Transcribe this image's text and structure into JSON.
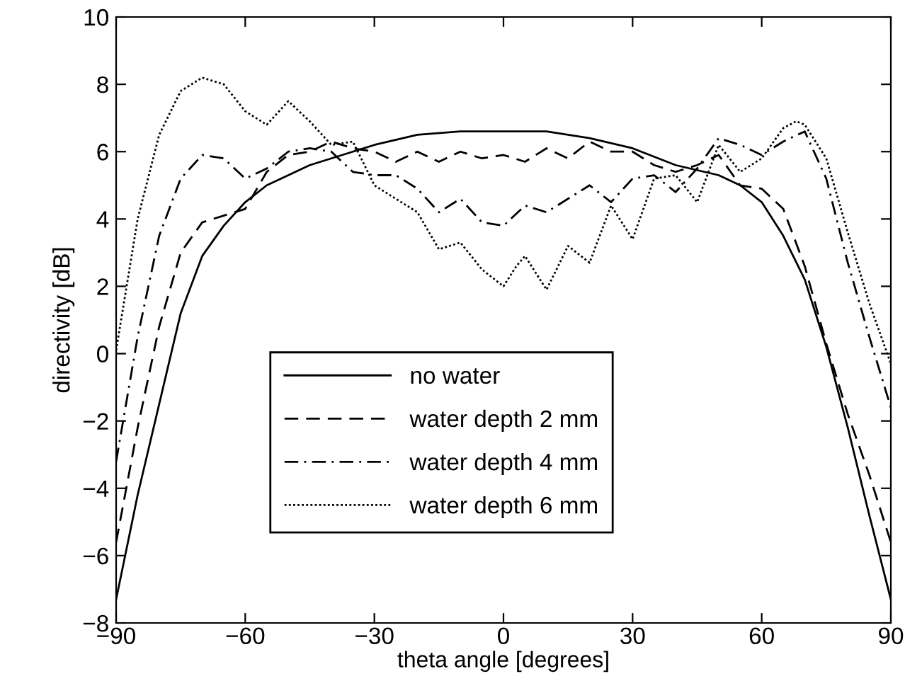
{
  "chart_data": {
    "type": "line",
    "xlabel": "theta angle [degrees]",
    "ylabel": "directivity [dB]",
    "xlim": [
      -90,
      90
    ],
    "ylim": [
      -8,
      10
    ],
    "xticks": [
      -90,
      -60,
      -30,
      0,
      30,
      60,
      90
    ],
    "yticks": [
      -8,
      -6,
      -4,
      -2,
      0,
      2,
      4,
      6,
      8,
      10
    ],
    "grid": false,
    "legend": "bottom",
    "marker": "none",
    "series": [
      {
        "name": "no water",
        "color": "#000000",
        "line_style": "solid",
        "x": [
          -90,
          -85,
          -80,
          -75,
          -70,
          -65,
          -60,
          -55,
          -50,
          -45,
          -40,
          -35,
          -30,
          -20,
          -10,
          0,
          10,
          20,
          30,
          40,
          50,
          55,
          60,
          65,
          70,
          75,
          80,
          85,
          90
        ],
        "values": [
          -7.3,
          -4.2,
          -1.5,
          1.2,
          2.9,
          3.8,
          4.5,
          5.0,
          5.3,
          5.6,
          5.8,
          6.0,
          6.2,
          6.5,
          6.6,
          6.6,
          6.6,
          6.4,
          6.1,
          5.6,
          5.3,
          5.0,
          4.5,
          3.5,
          2.2,
          0.2,
          -2.2,
          -4.8,
          -7.3
        ]
      },
      {
        "name": "water depth 2 mm",
        "color": "#000000",
        "line_style": "dashed",
        "x": [
          -90,
          -85,
          -80,
          -75,
          -70,
          -65,
          -60,
          -55,
          -50,
          -45,
          -40,
          -35,
          -30,
          -25,
          -20,
          -15,
          -10,
          -5,
          0,
          5,
          10,
          15,
          20,
          25,
          30,
          35,
          40,
          45,
          50,
          55,
          60,
          65,
          70,
          75,
          80,
          85,
          90
        ],
        "values": [
          -5.6,
          -2.2,
          0.8,
          3.0,
          3.9,
          4.1,
          4.3,
          5.4,
          5.9,
          6.0,
          6.3,
          6.1,
          6.0,
          5.7,
          6.0,
          5.7,
          6.0,
          5.8,
          5.9,
          5.7,
          6.1,
          5.8,
          6.3,
          6.0,
          6.0,
          5.6,
          5.4,
          5.6,
          5.9,
          5.0,
          4.9,
          4.3,
          2.6,
          0.3,
          -1.8,
          -3.6,
          -5.6
        ]
      },
      {
        "name": "water depth 4 mm",
        "color": "#000000",
        "line_style": "dashdot",
        "x": [
          -90,
          -85,
          -80,
          -75,
          -70,
          -65,
          -60,
          -55,
          -50,
          -45,
          -40,
          -35,
          -30,
          -25,
          -20,
          -15,
          -10,
          -5,
          0,
          5,
          10,
          15,
          20,
          25,
          30,
          35,
          40,
          45,
          50,
          55,
          60,
          65,
          70,
          75,
          80,
          85,
          90
        ],
        "values": [
          -3.2,
          0.5,
          3.5,
          5.2,
          5.9,
          5.8,
          5.2,
          5.5,
          6.0,
          6.1,
          6.0,
          5.4,
          5.3,
          5.3,
          4.9,
          4.2,
          4.6,
          3.9,
          3.8,
          4.4,
          4.2,
          4.6,
          5.0,
          4.5,
          5.2,
          5.3,
          4.8,
          5.5,
          6.4,
          6.2,
          5.9,
          6.3,
          6.6,
          5.2,
          2.7,
          0.5,
          -1.6
        ]
      },
      {
        "name": "water depth 6 mm",
        "color": "#000000",
        "line_style": "dotted",
        "x": [
          -90,
          -85,
          -80,
          -75,
          -70,
          -65,
          -60,
          -55,
          -50,
          -45,
          -40,
          -35,
          -30,
          -25,
          -20,
          -15,
          -10,
          -5,
          0,
          3,
          5,
          10,
          15,
          20,
          25,
          30,
          35,
          40,
          45,
          50,
          55,
          60,
          65,
          68,
          70,
          75,
          80,
          85,
          90
        ],
        "values": [
          0.1,
          4.0,
          6.5,
          7.8,
          8.2,
          8.0,
          7.2,
          6.8,
          7.5,
          6.9,
          6.2,
          6.3,
          5.0,
          4.6,
          4.2,
          3.1,
          3.3,
          2.5,
          2.0,
          2.6,
          2.9,
          1.9,
          3.2,
          2.7,
          4.4,
          3.4,
          5.2,
          5.3,
          4.5,
          6.2,
          5.4,
          5.8,
          6.7,
          6.9,
          6.8,
          5.8,
          3.6,
          1.5,
          -0.3
        ]
      }
    ]
  }
}
